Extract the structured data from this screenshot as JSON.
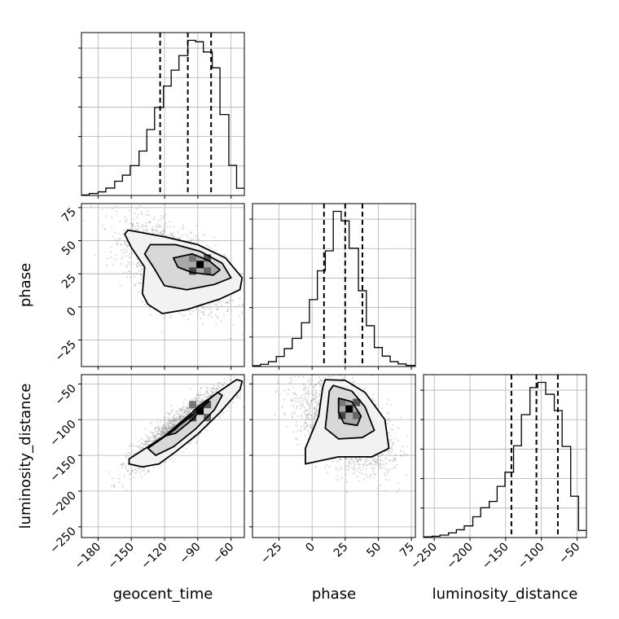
{
  "chart_data": {
    "type": "corner",
    "parameters": [
      "geocent_time",
      "phase",
      "luminosity_distance"
    ],
    "grid": true,
    "axes": {
      "geocent_time": {
        "label": "geocent_time",
        "range": [
          -195,
          -48
        ],
        "ticks": [
          -180,
          -150,
          -120,
          -90,
          -60
        ],
        "tick_labels": [
          "−180",
          "−150",
          "−120",
          "−90",
          "−60"
        ]
      },
      "phase": {
        "label": "phase",
        "range": [
          -45,
          78
        ],
        "ticks": [
          -25,
          0,
          25,
          50,
          75
        ],
        "tick_labels": [
          "−25",
          "0",
          "25",
          "50",
          "75"
        ]
      },
      "luminosity_distance": {
        "label": "luminosity_distance",
        "range": [
          -265,
          -37
        ],
        "ticks": [
          -250,
          -200,
          -150,
          -100,
          -50
        ],
        "tick_labels": [
          "−250",
          "−200",
          "−150",
          "−100",
          "−50"
        ]
      }
    },
    "marginals": {
      "geocent_time": {
        "bin_edges": [
          -195,
          -188,
          -180,
          -173,
          -165,
          -158,
          -151,
          -143,
          -136,
          -129,
          -121,
          -114,
          -107,
          -99,
          -92,
          -85,
          -77,
          -70,
          -62,
          -55,
          -48
        ],
        "counts": [
          0.3,
          1.2,
          2.2,
          4.5,
          8.7,
          12.4,
          18.2,
          27.1,
          40.2,
          53.7,
          66.8,
          76.5,
          85.4,
          94.7,
          93.8,
          87.6,
          77.9,
          49.4,
          18.4,
          4.4
        ],
        "quantiles": [
          -124,
          -99,
          -78
        ]
      },
      "phase": {
        "bin_edges": [
          -45,
          -39,
          -33,
          -27,
          -21,
          -15,
          -8,
          -2,
          4,
          10,
          16,
          22,
          28,
          35,
          41,
          47,
          53,
          59,
          65,
          71,
          78
        ],
        "counts": [
          0.4,
          1.2,
          2.6,
          5.4,
          9.6,
          15.1,
          23.5,
          35.9,
          51.4,
          62.1,
          83.3,
          78.2,
          63.5,
          40.7,
          21.9,
          10.2,
          5.6,
          2.6,
          1.4,
          0.6
        ],
        "quantiles": [
          9,
          25,
          38
        ]
      },
      "luminosity_distance": {
        "bin_edges": [
          -265,
          -253,
          -242,
          -230,
          -219,
          -208,
          -196,
          -185,
          -173,
          -162,
          -151,
          -139,
          -128,
          -116,
          -105,
          -94,
          -82,
          -71,
          -59,
          -48,
          -37
        ],
        "counts": [
          0.4,
          0.8,
          1.5,
          2.9,
          4.8,
          7.2,
          12.8,
          18.4,
          22.3,
          31.6,
          40.3,
          56.6,
          75.8,
          92.5,
          95.7,
          88.4,
          78.3,
          56.2,
          25.5,
          4.4
        ],
        "quantiles": [
          -142,
          -107,
          -77
        ]
      }
    },
    "joint": {
      "phase_vs_geocent_time": {
        "x_param": "geocent_time",
        "y_param": "phase",
        "samples_center": [
          -110,
          30
        ],
        "peak": [
          -88,
          32
        ],
        "levels": [
          {
            "points": [
              [
                -153,
                58
              ],
              [
                -120,
                53
              ],
              [
                -90,
                47
              ],
              [
                -65,
                37
              ],
              [
                -50,
                22
              ],
              [
                -52,
                13
              ],
              [
                -70,
                6
              ],
              [
                -100,
                -2
              ],
              [
                -122,
                -5
              ],
              [
                -135,
                2
              ],
              [
                -140,
                10
              ],
              [
                -138,
                30
              ],
              [
                -150,
                45
              ],
              [
                -156,
                55
              ]
            ]
          },
          {
            "points": [
              [
                -133,
                47
              ],
              [
                -110,
                47
              ],
              [
                -88,
                42
              ],
              [
                -68,
                33
              ],
              [
                -60,
                22
              ],
              [
                -75,
                17
              ],
              [
                -100,
                13
              ],
              [
                -120,
                16
              ],
              [
                -130,
                30
              ],
              [
                -138,
                40
              ]
            ]
          },
          {
            "points": [
              [
                -112,
                37
              ],
              [
                -95,
                40
              ],
              [
                -80,
                35
              ],
              [
                -70,
                28
              ],
              [
                -76,
                24
              ],
              [
                -95,
                26
              ],
              [
                -108,
                30
              ]
            ]
          }
        ]
      },
      "luminosity_distance_vs_geocent_time": {
        "x_param": "geocent_time",
        "y_param": "luminosity_distance",
        "samples_center": [
          -105,
          -110
        ],
        "peak": [
          -88,
          -88
        ],
        "levels": [
          {
            "points": [
              [
                -145,
                -148
              ],
              [
                -120,
                -123
              ],
              [
                -95,
                -90
              ],
              [
                -72,
                -62
              ],
              [
                -55,
                -44
              ],
              [
                -50,
                -46
              ],
              [
                -52,
                -58
              ],
              [
                -70,
                -90
              ],
              [
                -90,
                -120
              ],
              [
                -110,
                -145
              ],
              [
                -125,
                -162
              ],
              [
                -140,
                -166
              ],
              [
                -152,
                -162
              ],
              [
                -152,
                -155
              ]
            ]
          },
          {
            "points": [
              [
                -135,
                -140
              ],
              [
                -110,
                -113
              ],
              [
                -90,
                -82
              ],
              [
                -72,
                -62
              ],
              [
                -68,
                -66
              ],
              [
                -75,
                -86
              ],
              [
                -92,
                -113
              ],
              [
                -112,
                -138
              ],
              [
                -128,
                -150
              ]
            ]
          },
          {
            "points": [
              [
                -120,
                -123
              ],
              [
                -100,
                -100
              ],
              [
                -86,
                -82
              ],
              [
                -80,
                -74
              ],
              [
                -84,
                -80
              ],
              [
                -95,
                -100
              ],
              [
                -110,
                -119
              ]
            ]
          }
        ]
      },
      "luminosity_distance_vs_phase": {
        "x_param": "phase",
        "y_param": "luminosity_distance",
        "samples_center": [
          25,
          -110
        ],
        "peak": [
          28,
          -85
        ],
        "levels": [
          {
            "points": [
              [
                10,
                -44
              ],
              [
                25,
                -45
              ],
              [
                40,
                -62
              ],
              [
                55,
                -100
              ],
              [
                58,
                -140
              ],
              [
                45,
                -152
              ],
              [
                20,
                -152
              ],
              [
                -5,
                -162
              ],
              [
                -5,
                -140
              ],
              [
                5,
                -95
              ],
              [
                8,
                -55
              ]
            ]
          },
          {
            "points": [
              [
                16,
                -52
              ],
              [
                30,
                -60
              ],
              [
                40,
                -82
              ],
              [
                47,
                -115
              ],
              [
                38,
                -125
              ],
              [
                20,
                -127
              ],
              [
                10,
                -112
              ],
              [
                12,
                -78
              ],
              [
                13,
                -60
              ]
            ]
          },
          {
            "points": [
              [
                20,
                -70
              ],
              [
                30,
                -75
              ],
              [
                37,
                -95
              ],
              [
                34,
                -108
              ],
              [
                24,
                -105
              ],
              [
                20,
                -90
              ]
            ]
          }
        ]
      }
    }
  }
}
